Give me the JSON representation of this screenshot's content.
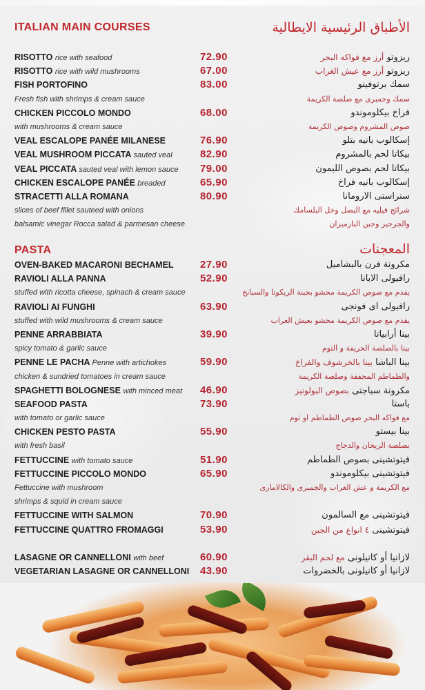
{
  "main_courses": {
    "title": "ITALIAN MAIN COURSES",
    "title_ar": "الأطباق الرئيسية الايطالية",
    "rows": [
      {
        "en": "RISOTTO",
        "en_note": "rice with seafood",
        "price": "72.90",
        "ar": "ريزوتو",
        "ar_note": "أرز مع فواكه البحر"
      },
      {
        "en": "RISOTTO",
        "en_note": "rice with wild mushrooms",
        "price": "67.00",
        "ar": "ريزوتو",
        "ar_note": "أرز مع عيش الغراب"
      },
      {
        "en": "FISH PORTOFINO",
        "price": "83.00",
        "ar": "سمك برتوفينو"
      },
      {
        "en_desc": "Fresh fish with shrimps & cream sauce",
        "ar_desc": "سمك وجمبرى مع صلصة الكريمة"
      },
      {
        "en": "CHICKEN PICCOLO MONDO",
        "price": "68.00",
        "ar": "فراخ بيكلوموندو"
      },
      {
        "en_desc": "with mushrooms & cream sauce",
        "ar_desc": "صوص المشروم وصوص الكريمة"
      },
      {
        "en": "VEAL ESCALOPE PANÉE MILANESE",
        "price": "76.90",
        "ar": "إسكالوب بانيه بتلو"
      },
      {
        "en": "VEAL MUSHROOM PICCATA",
        "en_note": "sauted veal",
        "price": "82.90",
        "ar": "بيكاتا لحم بالمشروم"
      },
      {
        "en": "VEAL PICCATA",
        "en_note": "sauted veal with lemon sauce",
        "price": "79.00",
        "ar": "بيكاتا لحم بصوص الليمون"
      },
      {
        "en": "CHICKEN ESCALOPE PANÉE",
        "en_note": "breaded",
        "price": "65.90",
        "ar": "إسكالوب بانيه فراخ"
      },
      {
        "en": "STRACETTI ALLA ROMANA",
        "price": "80.90",
        "ar": "ستراستى الارومانا"
      },
      {
        "en_desc": "slices of beef fillet sauteed with onions",
        "ar_desc": "شرائح فيليه مع البصل وخل البلسامك"
      },
      {
        "en_desc": "balsamic vinegar Rocca salad & parmesan cheese",
        "ar_desc": "والجرجير وجبن البارميزان"
      }
    ]
  },
  "pasta": {
    "title": "PASTA",
    "title_ar": "المعجنات",
    "rows": [
      {
        "en": "OVEN-BAKED MACARONI BECHAMEL",
        "price": "27.90",
        "ar": "مكرونة فرن بالبشاميل"
      },
      {
        "en": "RAVIOLI ALLA PANNA",
        "price": "52.90",
        "ar": "رافيولى الابانا"
      },
      {
        "en_desc": "stuffed with ricotta cheese, spinach & cream sauce",
        "ar_desc": "يقدم مع صوص الكريمة محشو بجبنة الريكوتا والسبانخ"
      },
      {
        "en": "RAVIOLI AI FUNGHI",
        "price": "63.90",
        "ar": "رافيولى اى فونجى"
      },
      {
        "en_desc": "stuffed with wild mushrooms & cream sauce",
        "ar_desc": "يقدم مع صوص الكريمة محشو بعيش الغراب"
      },
      {
        "en": "PENNE ARRABBIATA",
        "price": "39.90",
        "ar": "بينا أرابياتا"
      },
      {
        "en_desc": "spicy tomato & garlic sauce",
        "ar_desc": "بينا بالصلصة الحريفة و الثوم"
      },
      {
        "en": "PENNE LE PACHA",
        "en_note": "Penne with artichokes",
        "price": "59.90",
        "ar": "بينا الباشا",
        "ar_note": "بينا بالخرشوف والفراخ"
      },
      {
        "en_desc": "chicken & sundried tomatoes in cream sauce",
        "ar_desc": "والطماطم المجففة وصلصة الكريمة"
      },
      {
        "en": "SPAGHETTI BOLOGNESE",
        "en_note": "with minced meat",
        "price": "46.90",
        "ar": "مكرونة سباجتى",
        "ar_note": "بصوص البولونيز"
      },
      {
        "en": "SEAFOOD PASTA",
        "price": "73.90",
        "ar": "باستا"
      },
      {
        "en_desc": "with tomato or garlic sauce",
        "ar_desc": "مع فواكه البحر  صوص الطماطم او ثوم"
      },
      {
        "en": "CHICKEN PESTO PASTA",
        "price": "55.90",
        "ar": "بينا بيستو"
      },
      {
        "en_desc": "with fresh basil",
        "ar_desc": "بصلصة الريحان والدجاج"
      },
      {
        "en": "FETTUCCINE",
        "en_note": "with tomato sauce",
        "price": "51.90",
        "ar": "فيتوتشينى بصوص الطماطم"
      },
      {
        "en": "FETTUCCINE PICCOLO MONDO",
        "price": "65.90",
        "ar": "فيتوتشينى بيكلوموندو"
      },
      {
        "en_desc": "Fettuccine with mushroom",
        "ar_desc": "مع الكريمة و عش الغراب والجمبرى والكالامارى"
      },
      {
        "en_desc": " shrimps & squid in cream sauce"
      },
      {
        "en": "FETTUCCINE WITH SALMON",
        "price": "70.90",
        "ar": "فيتوتشينى مع السالمون"
      },
      {
        "en": "FETTUCCINE QUATTRO FROMAGGI",
        "price": "53.90",
        "ar": "فيتوتشينى",
        "ar_note": "٤ انواع من الجبن"
      },
      {},
      {
        "en": "LASAGNE OR CANNELLONI",
        "en_note": "with beef",
        "price": "60.90",
        "ar": "لازانيا  أو كانيلونى",
        "ar_note": "مع لحم البقر"
      },
      {
        "en": "VEGETARIAN LASAGNE OR CANNELLONI",
        "price": "43.90",
        "ar": "لازانيا أو كانيلونى بالخضروات"
      }
    ]
  },
  "colors": {
    "accent": "#c0272d",
    "price": "#b5232f",
    "arabic_note": "#b0303a",
    "text": "#1d1d1d"
  }
}
